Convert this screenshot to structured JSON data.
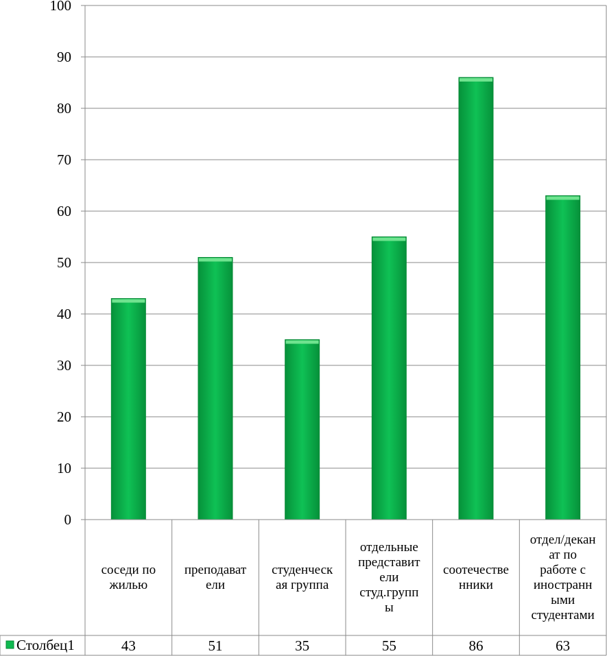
{
  "chart_data": {
    "type": "bar",
    "categories": [
      [
        "соседи по",
        "жилью"
      ],
      [
        "преподават",
        "ели"
      ],
      [
        "студенческ",
        "ая группа"
      ],
      [
        "отдельные",
        "представит",
        "ели",
        "студ.групп",
        "ы"
      ],
      [
        "соотечестве",
        "нники"
      ],
      [
        "отдел/декан",
        "ат по",
        "работе с",
        "иностранн",
        "ыми",
        "студентами"
      ]
    ],
    "series": [
      {
        "name": "Столбец1",
        "values": [
          43,
          51,
          35,
          55,
          86,
          63
        ]
      }
    ],
    "ylim": [
      0,
      100
    ],
    "yticks": [
      0,
      10,
      20,
      30,
      40,
      50,
      60,
      70,
      80,
      90,
      100
    ],
    "grid": true,
    "data_table": true,
    "bar_color": "#0fb950",
    "bar_dark": "#078a36",
    "bar_light": "#6fe38f"
  }
}
